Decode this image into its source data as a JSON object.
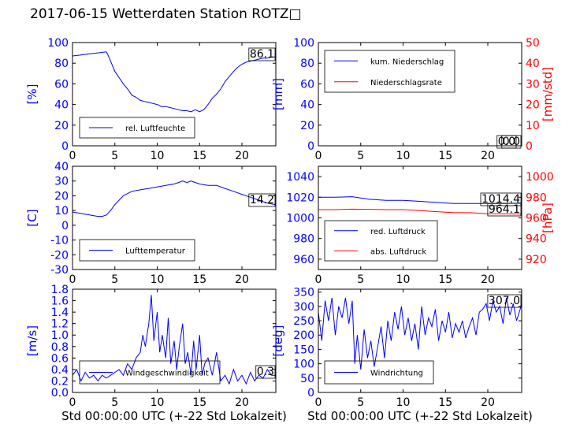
{
  "title": "2017-06-15 Wetterdaten Station ROTZ□",
  "colors": {
    "blue": "#0000ff",
    "red": "#ff0000",
    "lightblue": "#7f7fff"
  },
  "chart_data": [
    {
      "id": "p1",
      "type": "line",
      "ylabel": "[%]",
      "xlabel": "",
      "xlim": [
        0,
        24
      ],
      "ylim": [
        0,
        100
      ],
      "xticks": [
        0,
        5,
        10,
        15,
        20
      ],
      "yticks": [
        0,
        20,
        40,
        60,
        80,
        100
      ],
      "annotation": "86.1",
      "legend_position": "lower-left",
      "series": [
        {
          "name": "rel. Luftfeuchte",
          "color": "#0000ff",
          "x": [
            0,
            1,
            2,
            3,
            4,
            4.3,
            4.6,
            5,
            5.5,
            6,
            6.5,
            7,
            7.5,
            8,
            8.5,
            9,
            9.5,
            10,
            10.5,
            11,
            11.5,
            12,
            12.5,
            13,
            13.5,
            14,
            14.5,
            15,
            15.5,
            16,
            16.5,
            17,
            17.5,
            18,
            18.5,
            19,
            19.5,
            20,
            20.5,
            21,
            21.5,
            22,
            22.5,
            23,
            23.5,
            24
          ],
          "y": [
            87,
            88,
            89,
            90,
            91,
            86,
            80,
            72,
            66,
            60,
            55,
            49,
            47,
            44,
            43,
            42,
            41,
            40,
            38,
            38,
            37,
            36,
            35,
            34,
            34,
            33,
            35,
            33,
            35,
            40,
            46,
            50,
            55,
            62,
            67,
            72,
            76,
            79,
            81,
            82,
            83,
            84,
            85,
            85,
            86,
            86
          ]
        }
      ]
    },
    {
      "id": "p2",
      "type": "line",
      "ylabel": "[mm]",
      "ylabel_right": "[mm/std]",
      "xlabel": "",
      "xlim": [
        0,
        24
      ],
      "ylim": [
        0,
        100
      ],
      "ylim_right": [
        0,
        50
      ],
      "xticks": [
        0,
        5,
        10,
        15,
        20
      ],
      "yticks": [
        0,
        20,
        40,
        60,
        80,
        100
      ],
      "yticks_right": [
        0,
        10,
        20,
        30,
        40,
        50
      ],
      "annotation": "0.0",
      "annotation2": "0.0",
      "legend_position": "upper-left",
      "series": [
        {
          "name": "kum. Niederschlag",
          "color": "#0000ff",
          "x": [
            0,
            24
          ],
          "y": [
            0,
            0
          ]
        },
        {
          "name": "Niederschlagsrate",
          "color": "#ff0000",
          "x": [
            0,
            24
          ],
          "y": [
            0,
            0
          ]
        }
      ]
    },
    {
      "id": "p3",
      "type": "line",
      "ylabel": "[C]",
      "xlabel": "",
      "xlim": [
        0,
        24
      ],
      "ylim": [
        -30,
        40
      ],
      "xticks": [
        0,
        5,
        10,
        15,
        20
      ],
      "yticks": [
        -30,
        -20,
        -10,
        0,
        10,
        20,
        30,
        40
      ],
      "annotation": "14.2",
      "legend_position": "lower-left",
      "series": [
        {
          "name": "Lufttemperatur",
          "color": "#0000ff",
          "x": [
            0,
            1,
            2,
            3,
            3.5,
            4,
            4.5,
            5,
            5.5,
            6,
            7,
            8,
            9,
            10,
            11,
            12,
            12.5,
            13,
            13.5,
            14,
            14.5,
            15,
            16,
            17,
            18,
            19,
            20,
            21,
            22,
            23,
            24
          ],
          "y": [
            9,
            8,
            7,
            6,
            6,
            7,
            10,
            14,
            17,
            20,
            23,
            24,
            25,
            26,
            27,
            28,
            29,
            30,
            29,
            30,
            29,
            28,
            27,
            27,
            25,
            23,
            21,
            19,
            17,
            15,
            14
          ]
        }
      ]
    },
    {
      "id": "p4",
      "type": "line",
      "ylabel": "",
      "ylabel_right": "[hPa]",
      "xlabel": "",
      "xlim": [
        0,
        24
      ],
      "ylim": [
        950,
        1050
      ],
      "ylim_right": [
        910,
        1010
      ],
      "xticks": [
        0,
        5,
        10,
        15,
        20
      ],
      "yticks": [
        960,
        980,
        1000,
        1020,
        1040
      ],
      "yticks_right": [
        920,
        940,
        960,
        980,
        1000
      ],
      "annotation": "1014.4",
      "annotation2": "964.1",
      "legend_position": "lower-left",
      "series": [
        {
          "name": "red. Luftdruck",
          "color": "#0000ff",
          "x": [
            0,
            2,
            4,
            6,
            8,
            10,
            12,
            14,
            16,
            18,
            20,
            22,
            24
          ],
          "y": [
            1020,
            1020,
            1020.5,
            1018,
            1017,
            1017,
            1016,
            1015,
            1014,
            1014,
            1014,
            1014,
            1014.4
          ]
        },
        {
          "name": "abs. Luftdruck",
          "color": "#ff0000",
          "x": [
            0,
            2,
            4,
            6,
            8,
            10,
            12,
            14,
            16,
            18,
            20,
            22,
            24
          ],
          "y": [
            1008,
            1008,
            1008.5,
            1008.3,
            1008,
            1008,
            1007,
            1006,
            1005,
            1005,
            1004,
            1004,
            1003.6
          ]
        }
      ]
    },
    {
      "id": "p5",
      "type": "line",
      "ylabel": "[m/s]",
      "xlabel": "Std 00:00:00 UTC (+-22 Std Lokalzeit)",
      "xlim": [
        0,
        24
      ],
      "ylim": [
        0,
        1.8
      ],
      "xticks": [
        0,
        5,
        10,
        15,
        20
      ],
      "yticks": [
        0.0,
        0.2,
        0.4,
        0.6,
        0.8,
        1.0,
        1.2,
        1.4,
        1.6,
        1.8
      ],
      "annotation": "0.3",
      "legend_position": "lower-left",
      "series": [
        {
          "name": "Windgeschwindigkeit",
          "color": "#0000ff",
          "x": [
            0,
            0.5,
            1,
            1.5,
            2,
            2.5,
            3,
            3.5,
            4,
            4.5,
            5,
            5.5,
            6,
            6.5,
            7,
            7.5,
            8,
            8.3,
            8.6,
            9,
            9.3,
            9.6,
            10,
            10.3,
            10.6,
            11,
            11.3,
            11.6,
            12,
            12.3,
            12.6,
            13,
            13.3,
            13.6,
            14,
            14.3,
            14.6,
            15,
            15.3,
            15.6,
            16,
            16.5,
            17,
            17.5,
            18,
            18.5,
            19,
            19.5,
            20,
            20.5,
            21,
            21.5,
            22,
            22.5,
            23,
            23.5,
            24
          ],
          "y": [
            0.3,
            0.4,
            0.2,
            0.35,
            0.25,
            0.3,
            0.2,
            0.3,
            0.25,
            0.3,
            0.35,
            0.4,
            0.3,
            0.5,
            0.4,
            0.6,
            0.7,
            1.0,
            0.8,
            1.2,
            1.7,
            0.9,
            1.4,
            0.7,
            1.0,
            0.6,
            1.3,
            0.5,
            0.9,
            0.4,
            0.8,
            1.2,
            0.5,
            0.7,
            0.3,
            0.9,
            0.4,
            1.0,
            0.3,
            0.5,
            0.6,
            0.3,
            0.7,
            0.2,
            0.3,
            0.15,
            0.4,
            0.2,
            0.3,
            0.15,
            0.35,
            0.2,
            0.3,
            0.25,
            0.4,
            0.3,
            0.3
          ]
        }
      ]
    },
    {
      "id": "p6",
      "type": "line",
      "ylabel": "[deg]",
      "xlabel": "Std 00:00:00 UTC (+-22 Std Lokalzeit)",
      "xlim": [
        0,
        24
      ],
      "ylim": [
        0,
        360
      ],
      "xticks": [
        0,
        5,
        10,
        15,
        20
      ],
      "yticks": [
        0,
        50,
        100,
        150,
        200,
        250,
        300,
        350
      ],
      "annotation": "307.0",
      "legend_position": "lower-left",
      "series": [
        {
          "name": "Windrichtung",
          "color": "#0000ff",
          "x": [
            0,
            0.4,
            0.8,
            1.2,
            1.6,
            2,
            2.4,
            2.8,
            3.2,
            3.6,
            4,
            4.3,
            4.6,
            5,
            5.4,
            5.8,
            6.2,
            6.6,
            7,
            7.4,
            7.8,
            8.2,
            8.6,
            9,
            9.4,
            9.8,
            10.2,
            10.6,
            11,
            11.4,
            11.8,
            12.2,
            12.6,
            13,
            13.4,
            13.8,
            14.2,
            14.6,
            15,
            15.4,
            15.8,
            16.2,
            16.6,
            17,
            17.4,
            17.8,
            18.2,
            18.6,
            19,
            19.4,
            19.8,
            20.2,
            20.6,
            21,
            21.4,
            21.8,
            22.2,
            22.6,
            23,
            23.4,
            24
          ],
          "y": [
            280,
            180,
            320,
            250,
            330,
            200,
            300,
            260,
            330,
            240,
            320,
            100,
            200,
            80,
            220,
            120,
            180,
            90,
            160,
            230,
            120,
            250,
            180,
            280,
            220,
            300,
            200,
            260,
            180,
            240,
            150,
            300,
            200,
            260,
            230,
            290,
            180,
            250,
            210,
            280,
            190,
            240,
            210,
            250,
            190,
            230,
            260,
            200,
            280,
            290,
            310,
            250,
            320,
            280,
            300,
            240,
            330,
            270,
            310,
            250,
            307
          ]
        }
      ]
    }
  ]
}
